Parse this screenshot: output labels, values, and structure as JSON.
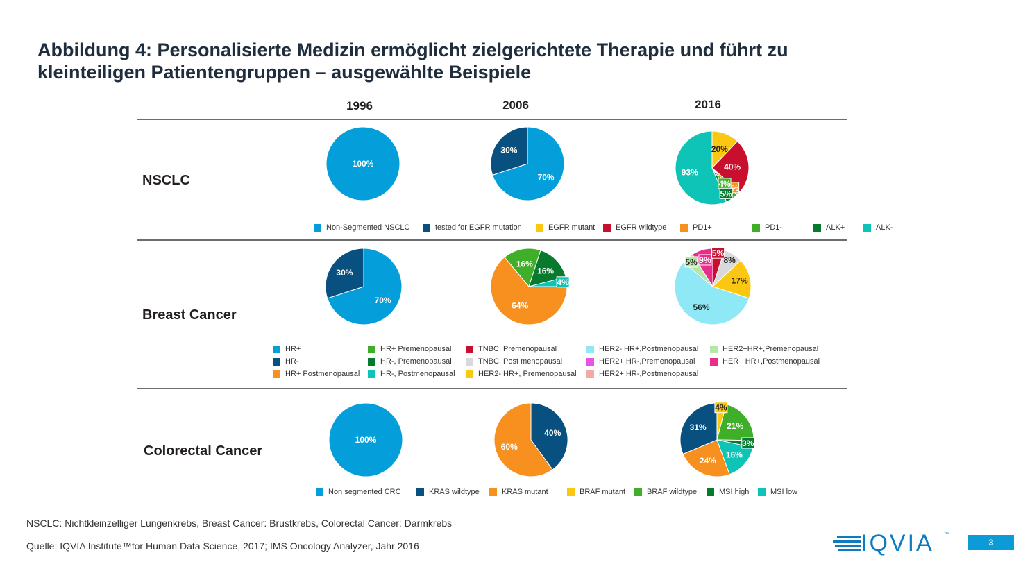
{
  "title_line1": "Abbildung 4: Personalisierte Medizin ermöglicht zielgerichtete Therapie und führt zu",
  "title_line2": "kleinteiligen Patientengruppen – ausgewählte Beispiele",
  "years": [
    "1996",
    "2006",
    "2016"
  ],
  "chart_data": [
    {
      "type": "pie",
      "row": "NSCLC",
      "legend": [
        {
          "label": "Non-Segmented NSCLC",
          "color": "#049fdb"
        },
        {
          "label": "tested for EGFR mutation",
          "color": "#07507f"
        },
        {
          "label": "EGFR mutant",
          "color": "#fcc710"
        },
        {
          "label": "EGFR wildtype",
          "color": "#c8102e"
        },
        {
          "label": "PD1+",
          "color": "#f7901e"
        },
        {
          "label": "PD1-",
          "color": "#3fae29"
        },
        {
          "label": "ALK+",
          "color": "#077a2e"
        },
        {
          "label": "ALK-",
          "color": "#0ec4b6"
        }
      ],
      "pies": [
        {
          "year": "1996",
          "slices": [
            {
              "label": "100%",
              "value": 100,
              "color": "#049fdb"
            }
          ]
        },
        {
          "year": "2006",
          "slices": [
            {
              "label": "70%",
              "value": 70,
              "color": "#049fdb"
            },
            {
              "label": "30%",
              "value": 30,
              "color": "#07507f"
            }
          ]
        },
        {
          "year": "2016",
          "slices": [
            {
              "label": "20%",
              "value": 20,
              "color": "#fcc710"
            },
            {
              "label": "40%",
              "value": 40,
              "color": "#c8102e"
            },
            {
              "label": "3%",
              "value": 3,
              "color": "#f7901e"
            },
            {
              "label": "4%",
              "value": 4,
              "color": "#3fae29"
            },
            {
              "label": "5%",
              "value": 5,
              "color": "#077a2e"
            },
            {
              "label": "93%",
              "value": 93,
              "color": "#0ec4b6"
            }
          ]
        }
      ]
    },
    {
      "type": "pie",
      "row": "Breast Cancer",
      "legend": [
        {
          "label": "HR+",
          "color": "#049fdb"
        },
        {
          "label": "HR-",
          "color": "#07507f"
        },
        {
          "label": "HR+ Postmenopausal",
          "color": "#f7901e"
        },
        {
          "label": "HR+ Premenopausal",
          "color": "#3fae29"
        },
        {
          "label": "HR-, Premenopausal",
          "color": "#077a2e"
        },
        {
          "label": "HR-, Postmenopausal",
          "color": "#0ec4b6"
        },
        {
          "label": "TNBC, Premenopausal",
          "color": "#c8102e"
        },
        {
          "label": "TNBC, Post menopausal",
          "color": "#d9d9d9"
        },
        {
          "label": "HER2- HR+, Premenopausal",
          "color": "#fcc710"
        },
        {
          "label": "HER2- HR+,Postmenopausal",
          "color": "#8ee8f5"
        },
        {
          "label": "HER2+ HR-,Premenopausal",
          "color": "#e655e6"
        },
        {
          "label": "HER2+ HR-,Postmenopausal",
          "color": "#f5aaa0"
        },
        {
          "label": "HER2+HR+,Premenopausal",
          "color": "#b4e6a6"
        },
        {
          "label": "HER+ HR+,Postmenopausal",
          "color": "#e62e8a"
        }
      ],
      "pies": [
        {
          "year": "1996",
          "slices": [
            {
              "label": "70%",
              "value": 70,
              "color": "#049fdb"
            },
            {
              "label": "30%",
              "value": 30,
              "color": "#07507f"
            }
          ]
        },
        {
          "year": "2006",
          "slices": [
            {
              "label": "64%",
              "value": 64,
              "color": "#f7901e"
            },
            {
              "label": "16%",
              "value": 16,
              "color": "#3fae29"
            },
            {
              "label": "16%",
              "value": 16,
              "color": "#077a2e"
            },
            {
              "label": "4%",
              "value": 4,
              "color": "#0ec4b6"
            }
          ]
        },
        {
          "year": "2016",
          "slices": [
            {
              "label": "5%",
              "value": 5,
              "color": "#c8102e"
            },
            {
              "label": "8%",
              "value": 8,
              "color": "#d9d9d9"
            },
            {
              "label": "17%",
              "value": 17,
              "color": "#fcc710"
            },
            {
              "label": "56%",
              "value": 56,
              "color": "#8ee8f5"
            },
            {
              "label": "5%",
              "value": 5,
              "color": "#b4e6a6"
            },
            {
              "label": "9%",
              "value": 9,
              "color": "#e62e8a"
            }
          ]
        }
      ]
    },
    {
      "type": "pie",
      "row": "Colorectal Cancer",
      "legend": [
        {
          "label": "Non segmented CRC",
          "color": "#049fdb"
        },
        {
          "label": "KRAS wildtype",
          "color": "#07507f"
        },
        {
          "label": "KRAS mutant",
          "color": "#f7901e"
        },
        {
          "label": "BRAF mutant",
          "color": "#fcc710"
        },
        {
          "label": "BRAF wildtype",
          "color": "#3fae29"
        },
        {
          "label": "MSI high",
          "color": "#077a2e"
        },
        {
          "label": "MSI low",
          "color": "#0ec4b6"
        }
      ],
      "pies": [
        {
          "year": "1996",
          "slices": [
            {
              "label": "100%",
              "value": 100,
              "color": "#049fdb"
            }
          ]
        },
        {
          "year": "2006",
          "slices": [
            {
              "label": "40%",
              "value": 40,
              "color": "#07507f"
            },
            {
              "label": "60%",
              "value": 60,
              "color": "#f7901e"
            }
          ]
        },
        {
          "year": "2016",
          "slices": [
            {
              "label": "4%",
              "value": 4,
              "color": "#fcc710"
            },
            {
              "label": "21%",
              "value": 21,
              "color": "#3fae29"
            },
            {
              "label": "3%",
              "value": 3,
              "color": "#077a2e"
            },
            {
              "label": "16%",
              "value": 16,
              "color": "#0ec4b6"
            },
            {
              "label": "24%",
              "value": 24,
              "color": "#f7901e"
            },
            {
              "label": "31%",
              "value": 31,
              "color": "#07507f"
            }
          ]
        }
      ]
    }
  ],
  "footnote1": "NSCLC: Nichtkleinzelliger Lungenkrebs, Breast Cancer: Brustkrebs, Colorectal Cancer: Darmkrebs",
  "footnote2": "Quelle: IQVIA Institute™for Human Data Science, 2017; IMS Oncology Analyzer, Jahr 2016",
  "logo": {
    "text": "IQVIA",
    "tm": "™",
    "color": "#0c7bc0"
  },
  "page_number": "3"
}
